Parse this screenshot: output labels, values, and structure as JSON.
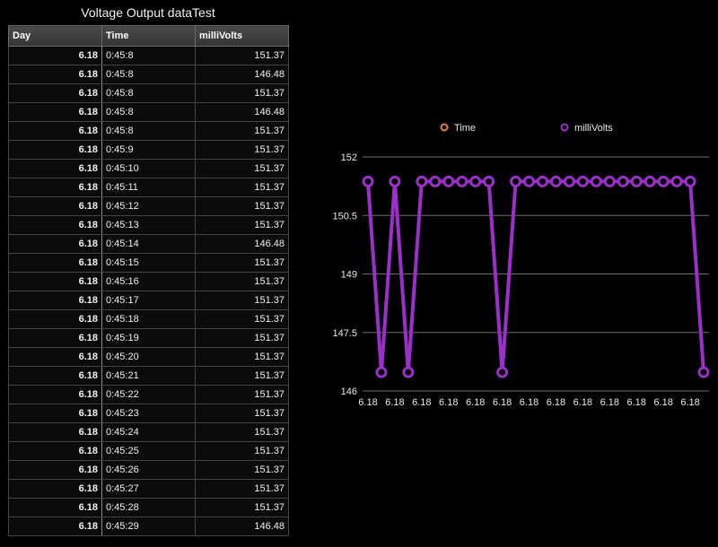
{
  "title": "Voltage Output dataTest",
  "table": {
    "headers": [
      "Day",
      "Time",
      "milliVolts"
    ],
    "rows": [
      [
        "6.18",
        "0:45:8",
        "151.37"
      ],
      [
        "6.18",
        "0:45:8",
        "146.48"
      ],
      [
        "6.18",
        "0:45:8",
        "151.37"
      ],
      [
        "6.18",
        "0:45:8",
        "146.48"
      ],
      [
        "6.18",
        "0:45:8",
        "151.37"
      ],
      [
        "6.18",
        "0:45:9",
        "151.37"
      ],
      [
        "6.18",
        "0:45:10",
        "151.37"
      ],
      [
        "6.18",
        "0:45:11",
        "151.37"
      ],
      [
        "6.18",
        "0:45:12",
        "151.37"
      ],
      [
        "6.18",
        "0:45:13",
        "151.37"
      ],
      [
        "6.18",
        "0:45:14",
        "146.48"
      ],
      [
        "6.18",
        "0:45:15",
        "151.37"
      ],
      [
        "6.18",
        "0:45:16",
        "151.37"
      ],
      [
        "6.18",
        "0:45:17",
        "151.37"
      ],
      [
        "6.18",
        "0:45:18",
        "151.37"
      ],
      [
        "6.18",
        "0:45:19",
        "151.37"
      ],
      [
        "6.18",
        "0:45:20",
        "151.37"
      ],
      [
        "6.18",
        "0:45:21",
        "151.37"
      ],
      [
        "6.18",
        "0:45:22",
        "151.37"
      ],
      [
        "6.18",
        "0:45:23",
        "151.37"
      ],
      [
        "6.18",
        "0:45:24",
        "151.37"
      ],
      [
        "6.18",
        "0:45:25",
        "151.37"
      ],
      [
        "6.18",
        "0:45:26",
        "151.37"
      ],
      [
        "6.18",
        "0:45:27",
        "151.37"
      ],
      [
        "6.18",
        "0:45:28",
        "151.37"
      ],
      [
        "6.18",
        "0:45:29",
        "146.48"
      ]
    ]
  },
  "chart_data": {
    "type": "line",
    "legend": [
      {
        "name": "Time",
        "color": "#e8843c"
      },
      {
        "name": "milliVolts",
        "color": "#9b2fc9"
      }
    ],
    "x_tick_labels": [
      "6.18",
      "6.18",
      "6.18",
      "6.18",
      "6.18",
      "6.18",
      "6.18",
      "6.18",
      "6.18",
      "6.18",
      "6.18",
      "6.18",
      "6.18"
    ],
    "y_ticks": [
      146,
      147.5,
      149,
      150.5,
      152
    ],
    "y_tick_labels": [
      "146",
      "147.5",
      "149",
      "150.5",
      "152"
    ],
    "ylim": [
      146,
      152
    ],
    "grid": true,
    "legend_placement": "top",
    "series": [
      {
        "name": "milliVolts",
        "color": "#9b2fc9",
        "values": [
          151.37,
          146.48,
          151.37,
          146.48,
          151.37,
          151.37,
          151.37,
          151.37,
          151.37,
          151.37,
          146.48,
          151.37,
          151.37,
          151.37,
          151.37,
          151.37,
          151.37,
          151.37,
          151.37,
          151.37,
          151.37,
          151.37,
          151.37,
          151.37,
          151.37,
          146.48
        ]
      }
    ]
  }
}
